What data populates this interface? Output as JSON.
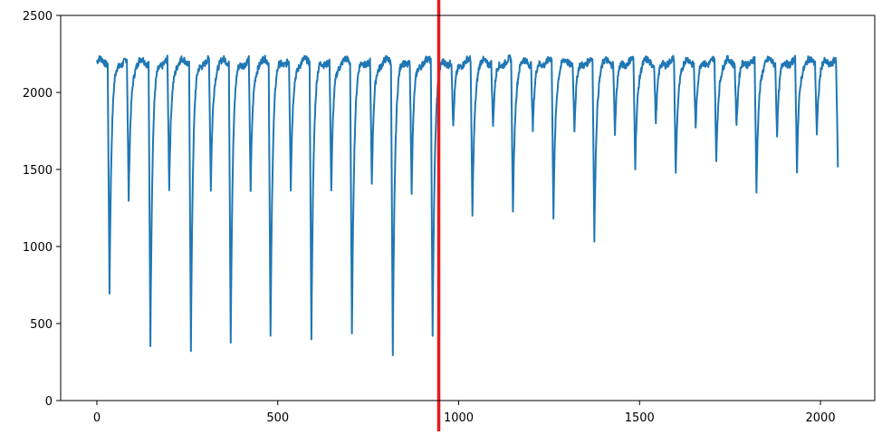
{
  "chart_data": {
    "type": "line",
    "title": "",
    "xlabel": "",
    "ylabel": "",
    "xlim": [
      -100,
      2150
    ],
    "ylim": [
      0,
      2500
    ],
    "xticks": [
      0,
      500,
      1000,
      1500,
      2000
    ],
    "yticks": [
      0,
      500,
      1000,
      1500,
      2000,
      2500
    ],
    "grid": false,
    "legend": "none",
    "series": [
      {
        "color": "#1f77b4",
        "baseline": 2200,
        "length": 2048,
        "dips": [
          {
            "x": 35,
            "min": 715
          },
          {
            "x": 88,
            "min": 1290
          },
          {
            "x": 148,
            "min": 380
          },
          {
            "x": 200,
            "min": 1360
          },
          {
            "x": 260,
            "min": 350
          },
          {
            "x": 315,
            "min": 1355
          },
          {
            "x": 370,
            "min": 410
          },
          {
            "x": 425,
            "min": 1345
          },
          {
            "x": 480,
            "min": 420
          },
          {
            "x": 536,
            "min": 1360
          },
          {
            "x": 593,
            "min": 430
          },
          {
            "x": 648,
            "min": 1345
          },
          {
            "x": 705,
            "min": 435
          },
          {
            "x": 760,
            "min": 1390
          },
          {
            "x": 818,
            "min": 310
          },
          {
            "x": 870,
            "min": 1350
          },
          {
            "x": 928,
            "min": 415
          },
          {
            "x": 985,
            "min": 1755
          },
          {
            "x": 1038,
            "min": 1205
          },
          {
            "x": 1095,
            "min": 1765
          },
          {
            "x": 1150,
            "min": 1220
          },
          {
            "x": 1205,
            "min": 1760
          },
          {
            "x": 1262,
            "min": 1195
          },
          {
            "x": 1320,
            "min": 1760
          },
          {
            "x": 1375,
            "min": 1035
          },
          {
            "x": 1432,
            "min": 1740
          },
          {
            "x": 1488,
            "min": 1515
          },
          {
            "x": 1545,
            "min": 1800
          },
          {
            "x": 1600,
            "min": 1460
          },
          {
            "x": 1655,
            "min": 1775
          },
          {
            "x": 1712,
            "min": 1530
          },
          {
            "x": 1768,
            "min": 1780
          },
          {
            "x": 1823,
            "min": 1335
          },
          {
            "x": 1880,
            "min": 1735
          },
          {
            "x": 1935,
            "min": 1480
          },
          {
            "x": 1990,
            "min": 1745
          },
          {
            "x": 2048,
            "min": 1515
          }
        ]
      }
    ],
    "annotations": [
      {
        "type": "vline",
        "x": 945,
        "color": "#e8191b"
      }
    ]
  }
}
